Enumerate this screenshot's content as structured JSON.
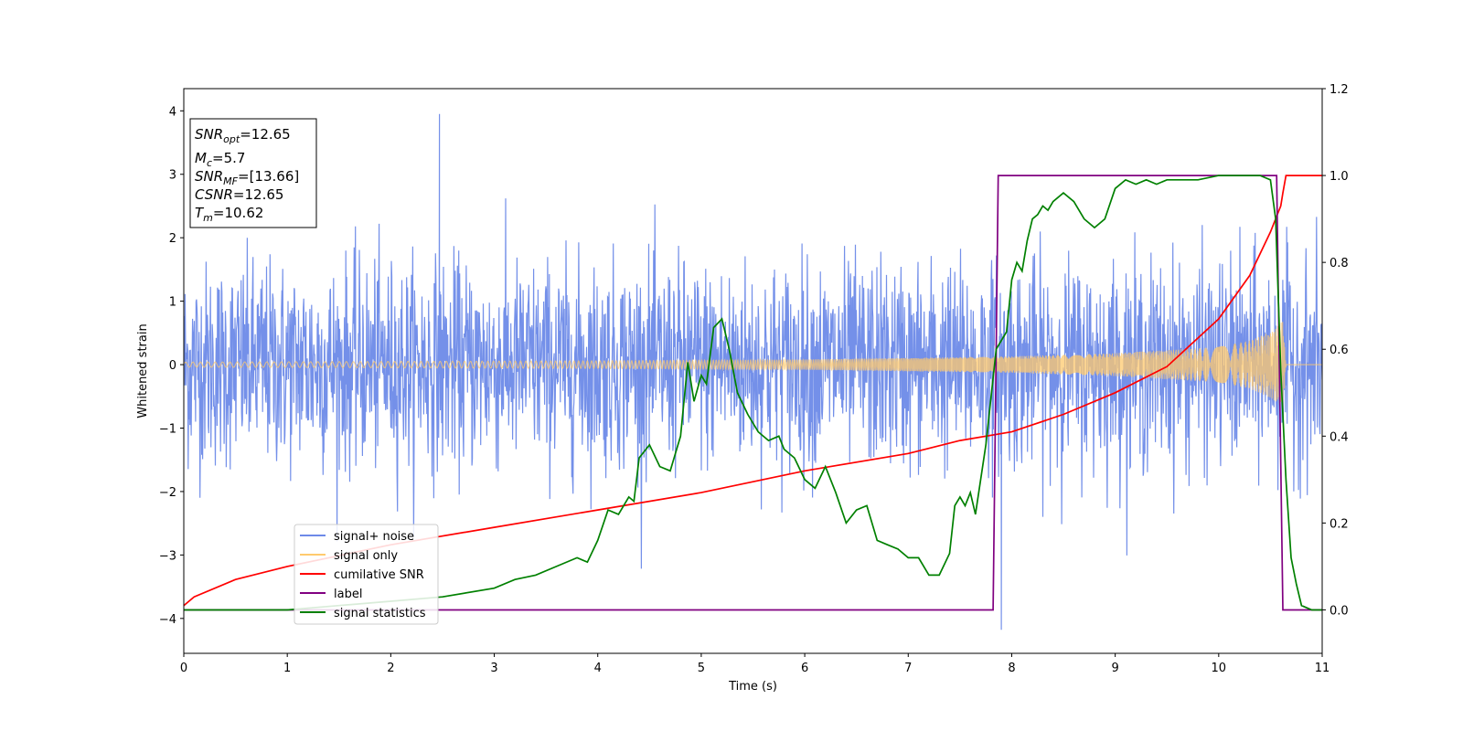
{
  "chart_data": {
    "type": "line",
    "xlabel": "Time (s)",
    "ylabel": "Whitened strain",
    "xlim": [
      0,
      11
    ],
    "ylim": [
      -4.55,
      4.35
    ],
    "y2lim": [
      -0.1,
      1.2
    ],
    "xticks": [
      0,
      1,
      2,
      3,
      4,
      5,
      6,
      7,
      8,
      9,
      10,
      11
    ],
    "yticks": [
      -4,
      -3,
      -2,
      -1,
      0,
      1,
      2,
      3,
      4
    ],
    "y2ticks": [
      0.0,
      0.2,
      0.4,
      0.6,
      0.8,
      1.0,
      1.2
    ],
    "xtick_labels": [
      "0",
      "1",
      "2",
      "3",
      "4",
      "5",
      "6",
      "7",
      "8",
      "9",
      "10",
      "11"
    ],
    "ytick_labels": [
      "−4",
      "−3",
      "−2",
      "−1",
      "0",
      "1",
      "2",
      "3",
      "4"
    ],
    "y2tick_labels": [
      "0.0",
      "0.2",
      "0.4",
      "0.6",
      "0.8",
      "1.0",
      "1.2"
    ],
    "legend_position": "lower-left",
    "grid": false,
    "annotation_lines": [
      {
        "name": "SNR",
        "sub": "opt",
        "value": "=12.65"
      },
      {
        "name": "M",
        "sub": "c",
        "value": "=5.7"
      },
      {
        "name": "SNR",
        "sub": "MF",
        "value": "=[13.66]"
      },
      {
        "name": "CSNR",
        "sub": "",
        "value": "=12.65"
      },
      {
        "name": "T",
        "sub": "m",
        "value": "=10.62"
      }
    ],
    "series": [
      {
        "name": "signal+ noise",
        "color": "#6d8ae8",
        "axis": "left",
        "noise_std": 0.8,
        "range": [
          -4.2,
          4.0
        ],
        "notable_peaks": [
          {
            "x": 2.47,
            "y": 3.95
          },
          {
            "x": 7.9,
            "y": -4.18
          }
        ]
      },
      {
        "name": "signal only",
        "color": "#ffca6e",
        "axis": "left",
        "envelope": {
          "x": [
            0,
            2,
            4,
            6,
            8,
            9,
            10,
            10.3,
            10.5,
            10.6,
            10.62,
            10.65,
            11
          ],
          "amplitude": [
            0.04,
            0.05,
            0.06,
            0.08,
            0.13,
            0.18,
            0.28,
            0.38,
            0.52,
            0.65,
            0.72,
            0.0,
            0.0
          ]
        }
      },
      {
        "name": "cumilative SNR",
        "color": "#ff0000",
        "axis": "right",
        "x": [
          0,
          0.1,
          0.5,
          1,
          2,
          3,
          4,
          5,
          6,
          7,
          7.5,
          8,
          8.5,
          9,
          9.5,
          10,
          10.3,
          10.5,
          10.6,
          10.62,
          10.65,
          11
        ],
        "values": [
          0.01,
          0.03,
          0.07,
          0.1,
          0.15,
          0.19,
          0.23,
          0.27,
          0.32,
          0.36,
          0.39,
          0.41,
          0.45,
          0.5,
          0.56,
          0.67,
          0.77,
          0.87,
          0.93,
          0.96,
          1.0,
          1.0
        ]
      },
      {
        "name": "label",
        "color": "#800080",
        "axis": "right",
        "x": [
          0,
          7.82,
          7.87,
          10.56,
          10.62,
          11
        ],
        "values": [
          0,
          0,
          1,
          1,
          0,
          0
        ]
      },
      {
        "name": "signal statistics",
        "color": "#008000",
        "axis": "right",
        "x": [
          0,
          0.5,
          1,
          1.5,
          2,
          2.5,
          3,
          3.2,
          3.4,
          3.6,
          3.8,
          3.9,
          4.0,
          4.1,
          4.2,
          4.3,
          4.35,
          4.4,
          4.5,
          4.6,
          4.7,
          4.8,
          4.87,
          4.93,
          5.0,
          5.05,
          5.12,
          5.2,
          5.27,
          5.35,
          5.45,
          5.55,
          5.65,
          5.75,
          5.8,
          5.9,
          6.0,
          6.1,
          6.2,
          6.3,
          6.4,
          6.5,
          6.6,
          6.7,
          6.8,
          6.9,
          7.0,
          7.1,
          7.2,
          7.3,
          7.4,
          7.45,
          7.5,
          7.55,
          7.6,
          7.65,
          7.75,
          7.85,
          7.9,
          7.95,
          8.0,
          8.05,
          8.1,
          8.15,
          8.2,
          8.25,
          8.3,
          8.35,
          8.4,
          8.5,
          8.6,
          8.7,
          8.8,
          8.9,
          9.0,
          9.1,
          9.2,
          9.3,
          9.4,
          9.5,
          9.6,
          9.8,
          10.0,
          10.2,
          10.4,
          10.5,
          10.55,
          10.6,
          10.65,
          10.7,
          10.75,
          10.8,
          10.9,
          11.0
        ],
        "values": [
          0.0,
          0.0,
          0.0,
          0.01,
          0.02,
          0.03,
          0.05,
          0.07,
          0.08,
          0.1,
          0.12,
          0.11,
          0.16,
          0.23,
          0.22,
          0.26,
          0.25,
          0.35,
          0.38,
          0.33,
          0.32,
          0.4,
          0.57,
          0.48,
          0.54,
          0.52,
          0.65,
          0.67,
          0.6,
          0.5,
          0.45,
          0.41,
          0.39,
          0.4,
          0.37,
          0.35,
          0.3,
          0.28,
          0.33,
          0.27,
          0.2,
          0.23,
          0.24,
          0.16,
          0.15,
          0.14,
          0.12,
          0.12,
          0.08,
          0.08,
          0.13,
          0.24,
          0.26,
          0.24,
          0.27,
          0.22,
          0.38,
          0.6,
          0.62,
          0.64,
          0.76,
          0.8,
          0.78,
          0.85,
          0.9,
          0.91,
          0.93,
          0.92,
          0.94,
          0.96,
          0.94,
          0.9,
          0.88,
          0.9,
          0.97,
          0.99,
          0.98,
          0.99,
          0.98,
          0.99,
          0.99,
          0.99,
          1.0,
          1.0,
          1.0,
          0.99,
          0.9,
          0.55,
          0.3,
          0.12,
          0.06,
          0.01,
          0.0,
          0.0
        ]
      }
    ]
  }
}
